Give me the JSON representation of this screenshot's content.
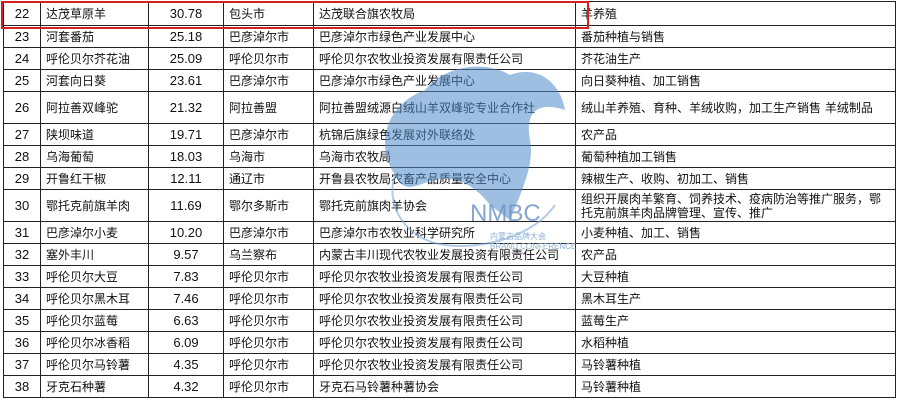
{
  "rows": [
    {
      "no": "22",
      "name": "达茂草原羊",
      "value": "30.78",
      "region": "包头市",
      "org": "达茂联合旗农牧局",
      "scope": "羊养殖"
    },
    {
      "no": "23",
      "name": "河套番茄",
      "value": "25.18",
      "region": "巴彦淖尔市",
      "org": "巴彦淖尔市绿色产业发展中心",
      "scope": "番茄种植与销售"
    },
    {
      "no": "24",
      "name": "呼伦贝尔芥花油",
      "value": "25.09",
      "region": "呼伦贝尔市",
      "org": "呼伦贝尔农牧业投资发展有限责任公司",
      "scope": "芥花油生产"
    },
    {
      "no": "25",
      "name": "河套向日葵",
      "value": "23.61",
      "region": "巴彦淖尔市",
      "org": "巴彦淖尔市绿色产业发展中心",
      "scope": "向日葵种植、加工销售"
    },
    {
      "no": "26",
      "name": "阿拉善双峰驼",
      "value": "21.32",
      "region": "阿拉善盟",
      "org": "阿拉善盟绒源白绒山羊双峰驼专业合作社",
      "scope": "绒山羊养殖、育种、羊绒收购，加工生产销售 羊绒制品",
      "tall": true
    },
    {
      "no": "27",
      "name": "陕坝味道",
      "value": "19.71",
      "region": "巴彦淖尔市",
      "org": "杭锦后旗绿色发展对外联络处",
      "scope": "农产品"
    },
    {
      "no": "28",
      "name": "乌海葡萄",
      "value": "18.03",
      "region": "乌海市",
      "org": "乌海市农牧局",
      "scope": "葡萄种植加工销售"
    },
    {
      "no": "29",
      "name": "开鲁红干椒",
      "value": "12.11",
      "region": "通辽市",
      "org": "开鲁县农牧局农畜产品质量安全中心",
      "scope": "辣椒生产、收购、初加工、销售"
    },
    {
      "no": "30",
      "name": "鄂托克前旗羊肉",
      "value": "11.69",
      "region": "鄂尔多斯市",
      "org": "鄂托克前旗肉羊协会",
      "scope": "组织开展肉羊繁育、饲养技术、疫病防治等推广服务，鄂托克前旗羊肉品牌管理、宣传、推广",
      "tall": true
    },
    {
      "no": "31",
      "name": "巴彦淖尔小麦",
      "value": "10.20",
      "region": "巴彦淖尔市",
      "org": "巴彦淖尔市农牧业科学研究所",
      "scope": "小麦种植、加工、销售"
    },
    {
      "no": "32",
      "name": "塞外丰川",
      "value": "9.57",
      "region": "乌兰察布",
      "org": "内蒙古丰川现代农牧业发展投资有限责任公司",
      "scope": "农产品"
    },
    {
      "no": "33",
      "name": "呼伦贝尔大豆",
      "value": "7.83",
      "region": "呼伦贝尔市",
      "org": "呼伦贝尔农牧业投资发展有限责任公司",
      "scope": "大豆种植"
    },
    {
      "no": "34",
      "name": "呼伦贝尔黑木耳",
      "value": "7.46",
      "region": "呼伦贝尔市",
      "org": "呼伦贝尔农牧业投资发展有限责任公司",
      "scope": "黑木耳生产"
    },
    {
      "no": "35",
      "name": "呼伦贝尔蓝莓",
      "value": "6.63",
      "region": "呼伦贝尔市",
      "org": "呼伦贝尔农牧业投资发展有限责任公司",
      "scope": "蓝莓生产"
    },
    {
      "no": "36",
      "name": "呼伦贝尔冰香稻",
      "value": "6.09",
      "region": "呼伦贝尔市",
      "org": "呼伦贝尔农牧业投资发展有限责任公司",
      "scope": "水稻种植"
    },
    {
      "no": "37",
      "name": "呼伦贝尔马铃薯",
      "value": "4.35",
      "region": "呼伦贝尔市",
      "org": "呼伦贝尔农牧业投资发展有限责任公司",
      "scope": "马铃薯种植"
    },
    {
      "no": "38",
      "name": "牙克石种薯",
      "value": "4.32",
      "region": "呼伦贝尔市",
      "org": "牙克石马铃薯种薯协会",
      "scope": "马铃薯种植"
    }
  ],
  "highlight_color": "#d42020",
  "watermark": {
    "logo": "NMBC",
    "cn": "内蒙古品牌大会",
    "en": "BRAND CONFERENCE",
    "color": "#6f97c9"
  }
}
